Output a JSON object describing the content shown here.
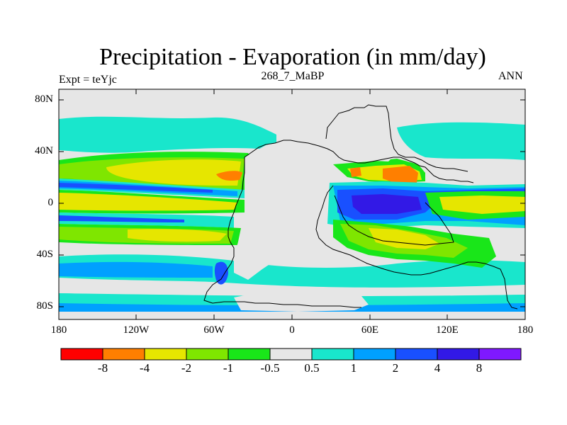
{
  "header": {
    "title": "Precipitation - Evaporation (in mm/day)",
    "subtitle": "268_7_MaBP",
    "left_label": "Expt = teYjc",
    "right_label": "ANN"
  },
  "axes": {
    "y_ticks": [
      "80N",
      "40N",
      "0",
      "40S",
      "80S"
    ],
    "x_ticks": [
      "180",
      "120W",
      "60W",
      "0",
      "60E",
      "120E",
      "180"
    ]
  },
  "colorbar": {
    "labels": [
      "-8",
      "-4",
      "-2",
      "-1",
      "-0.5",
      "0.5",
      "1",
      "2",
      "4",
      "8"
    ],
    "colors": [
      "#ff0000",
      "#ff7f00",
      "#e6e600",
      "#7fe600",
      "#19e619",
      "#e6e6e6",
      "#19e6cc",
      "#00a0ff",
      "#1950ff",
      "#3219e6",
      "#7f19ff"
    ]
  },
  "palette": {
    "land_gray": "#e6e6e6",
    "red": "#ff0000",
    "orange": "#ff7f00",
    "yellow": "#e6e600",
    "yellowgreen": "#7fe600",
    "green": "#19e619",
    "cyan": "#19e6cc",
    "lightblue": "#00a0ff",
    "blue": "#1950ff",
    "darkblue": "#3219e6"
  }
}
